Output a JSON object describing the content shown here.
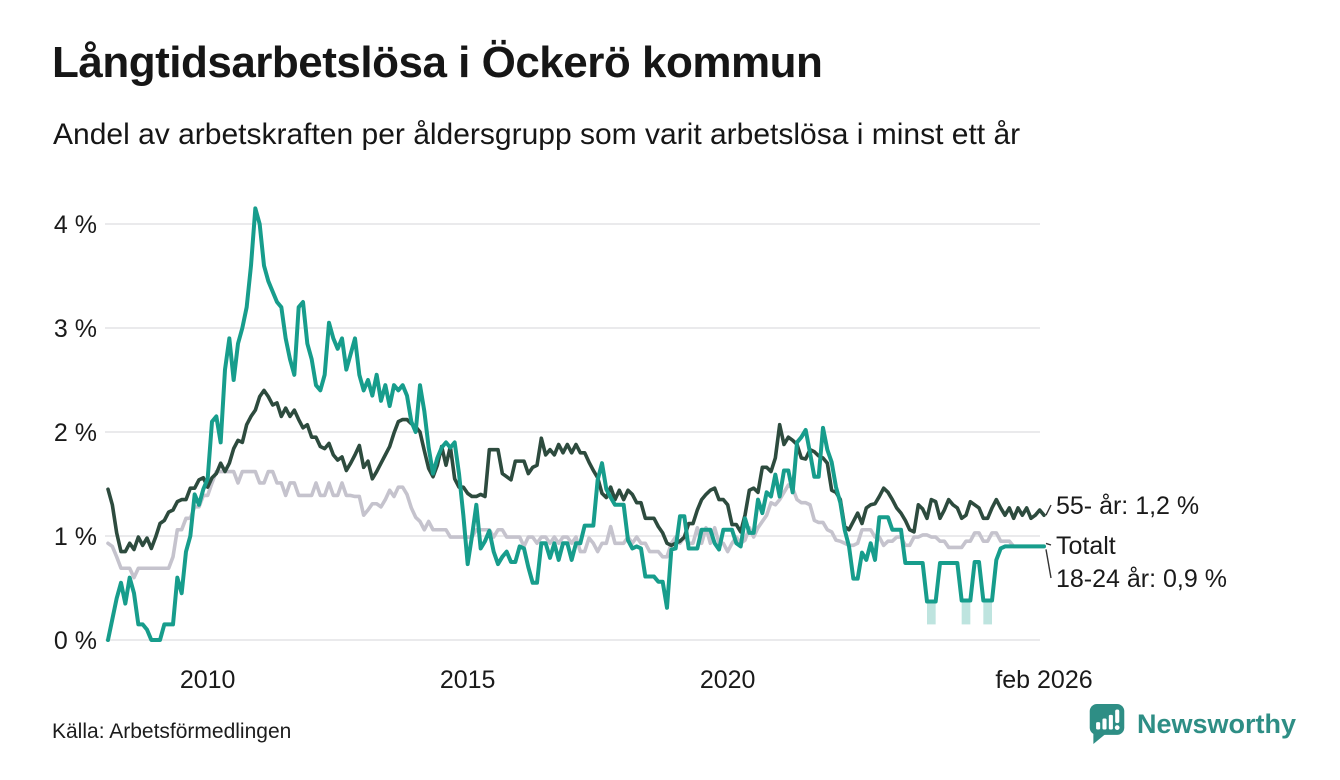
{
  "header": {
    "title": "Långtidsarbetslösa i Öckerö kommun",
    "subtitle": "Andel av arbetskraften per åldersgrupp som varit arbetslösa i minst ett år"
  },
  "footer": {
    "source": "Källa: Arbetsförmedlingen",
    "brand_name": "Newsworthy"
  },
  "colors": {
    "teal": "#179d8c",
    "dark_green": "#2d4b3e",
    "gray": "#c5c3cd",
    "band": "rgba(23,157,140,0.28)",
    "grid": "#e3e3e5",
    "brand_teal": "#2e8e85"
  },
  "chart_data": {
    "type": "line",
    "title": "Långtidsarbetslösa i Öckerö kommun",
    "subtitle": "Andel av arbetskraften per åldersgrupp som varit arbetslösa i minst ett år",
    "unit": "% av arbetskraften",
    "x_start": "2008-02",
    "x_end": "2026-02",
    "x_resolution": "monthly",
    "ylim": [
      0,
      4.3
    ],
    "grid": true,
    "y_ticks": [
      {
        "label": "0 %",
        "value": 0
      },
      {
        "label": "1 %",
        "value": 1
      },
      {
        "label": "2 %",
        "value": 2
      },
      {
        "label": "3 %",
        "value": 3
      },
      {
        "label": "4 %",
        "value": 4
      }
    ],
    "x_ticks": [
      {
        "label": "2010",
        "month_index": 23
      },
      {
        "label": "2015",
        "month_index": 83
      },
      {
        "label": "2020",
        "month_index": 143
      },
      {
        "label": "feb 2026",
        "month_index": 216
      }
    ],
    "series": [
      {
        "name": "Totalt",
        "end_label": "Totalt",
        "color_key": "gray",
        "last_value": 0.9,
        "values": [
          0.93,
          0.9,
          0.8,
          0.69,
          0.69,
          0.69,
          0.6,
          0.69,
          0.69,
          0.69,
          0.69,
          0.69,
          0.69,
          0.69,
          0.69,
          0.8,
          1.06,
          1.06,
          1.17,
          1.17,
          1.28,
          1.28,
          1.39,
          1.39,
          1.51,
          1.62,
          1.62,
          1.62,
          1.62,
          1.62,
          1.51,
          1.62,
          1.62,
          1.62,
          1.62,
          1.51,
          1.51,
          1.62,
          1.62,
          1.51,
          1.51,
          1.39,
          1.51,
          1.51,
          1.39,
          1.39,
          1.39,
          1.39,
          1.51,
          1.39,
          1.39,
          1.51,
          1.39,
          1.39,
          1.51,
          1.39,
          1.39,
          1.38,
          1.38,
          1.2,
          1.25,
          1.31,
          1.31,
          1.28,
          1.35,
          1.44,
          1.38,
          1.47,
          1.47,
          1.4,
          1.27,
          1.18,
          1.14,
          1.06,
          1.14,
          1.06,
          1.06,
          1.06,
          1.06,
          0.99,
          0.99,
          0.99,
          0.99,
          0.99,
          0.99,
          1.06,
          1.06,
          1.06,
          1.06,
          0.99,
          1.06,
          1.06,
          0.99,
          0.99,
          0.99,
          0.99,
          0.9,
          0.99,
          0.99,
          0.93,
          0.99,
          0.99,
          0.93,
          0.99,
          0.93,
          0.99,
          0.99,
          0.93,
          0.99,
          0.85,
          0.85,
          0.98,
          0.93,
          0.85,
          0.93,
          0.93,
          1.09,
          0.93,
          0.93,
          0.93,
          0.99,
          0.93,
          0.99,
          0.93,
          0.93,
          0.85,
          0.85,
          0.85,
          0.8,
          0.8,
          0.93,
          0.99,
          0.93,
          0.99,
          0.93,
          0.93,
          1.08,
          0.93,
          1.08,
          0.93,
          1.08,
          0.93,
          0.93,
          0.85,
          0.93,
          0.99,
          0.93,
          0.96,
          1.08,
          0.99,
          1.08,
          1.14,
          1.2,
          1.32,
          1.3,
          1.35,
          1.42,
          1.49,
          1.46,
          1.35,
          1.32,
          1.32,
          1.3,
          1.15,
          1.13,
          1.13,
          1.06,
          1.04,
          0.96,
          0.95,
          0.93,
          0.91,
          0.91,
          0.93,
          1.06,
          1.06,
          1.06,
          0.99,
          0.99,
          0.91,
          0.95,
          0.95,
          0.99,
          0.99,
          0.91,
          0.91,
          0.99,
          0.99,
          1.01,
          1.01,
          0.99,
          0.99,
          0.95,
          0.95,
          0.89,
          0.89,
          0.89,
          0.89,
          0.95,
          0.95,
          1.03,
          1.03,
          0.95,
          0.95,
          1.03,
          1.03,
          0.95,
          0.95,
          0.95,
          0.9,
          0.9,
          0.9,
          0.9,
          0.9,
          0.9,
          0.9,
          0.9
        ]
      },
      {
        "name": "55- år",
        "end_label": "55- år: 1,2 %",
        "color_key": "dark_green",
        "last_value": 1.2,
        "values": [
          1.45,
          1.3,
          1.03,
          0.85,
          0.85,
          0.93,
          0.87,
          0.99,
          0.91,
          0.98,
          0.88,
          0.99,
          1.12,
          1.15,
          1.23,
          1.25,
          1.33,
          1.35,
          1.35,
          1.46,
          1.46,
          1.54,
          1.56,
          1.47,
          1.56,
          1.6,
          1.7,
          1.62,
          1.7,
          1.84,
          1.92,
          1.9,
          2.07,
          2.15,
          2.21,
          2.34,
          2.4,
          2.34,
          2.26,
          2.28,
          2.15,
          2.23,
          2.15,
          2.21,
          2.12,
          2.04,
          2.07,
          1.95,
          1.95,
          1.86,
          1.84,
          1.89,
          1.78,
          1.73,
          1.76,
          1.63,
          1.7,
          1.78,
          1.87,
          1.66,
          1.72,
          1.55,
          1.62,
          1.7,
          1.78,
          1.86,
          1.99,
          2.1,
          2.12,
          2.12,
          2.08,
          2.05,
          2.0,
          1.82,
          1.65,
          1.57,
          1.68,
          1.86,
          1.68,
          1.86,
          1.55,
          1.47,
          1.47,
          1.41,
          1.38,
          1.38,
          1.4,
          1.38,
          1.83,
          1.83,
          1.83,
          1.6,
          1.57,
          1.54,
          1.72,
          1.72,
          1.72,
          1.6,
          1.66,
          1.68,
          1.94,
          1.78,
          1.83,
          1.78,
          1.88,
          1.8,
          1.88,
          1.8,
          1.88,
          1.8,
          1.8,
          1.71,
          1.63,
          1.56,
          1.41,
          1.37,
          1.47,
          1.35,
          1.44,
          1.35,
          1.44,
          1.4,
          1.32,
          1.32,
          1.17,
          1.17,
          1.17,
          1.09,
          1.03,
          0.93,
          0.91,
          0.93,
          0.95,
          0.99,
          1.12,
          1.12,
          1.25,
          1.35,
          1.4,
          1.44,
          1.46,
          1.35,
          1.35,
          1.3,
          1.11,
          1.11,
          1.04,
          1.2,
          1.44,
          1.46,
          1.42,
          1.66,
          1.66,
          1.62,
          1.75,
          2.07,
          1.88,
          1.95,
          1.92,
          1.88,
          1.75,
          1.74,
          1.83,
          1.81,
          1.77,
          1.75,
          1.7,
          1.44,
          1.42,
          1.35,
          1.09,
          1.06,
          1.14,
          1.22,
          1.12,
          1.27,
          1.3,
          1.31,
          1.38,
          1.46,
          1.42,
          1.35,
          1.27,
          1.22,
          1.15,
          1.06,
          1.04,
          1.3,
          1.26,
          1.17,
          1.35,
          1.33,
          1.17,
          1.25,
          1.35,
          1.3,
          1.27,
          1.17,
          1.2,
          1.33,
          1.3,
          1.27,
          1.17,
          1.17,
          1.27,
          1.35,
          1.27,
          1.2,
          1.27,
          1.17,
          1.27,
          1.2,
          1.27,
          1.17,
          1.2,
          1.25,
          1.2
        ]
      },
      {
        "name": "18-24 år",
        "end_label": "18-24 år: 0,9 %",
        "color_key": "teal",
        "last_value": 0.9,
        "values": [
          0.0,
          0.2,
          0.4,
          0.55,
          0.35,
          0.6,
          0.45,
          0.15,
          0.15,
          0.1,
          0.0,
          0.0,
          0.0,
          0.15,
          0.15,
          0.15,
          0.6,
          0.45,
          0.85,
          1.0,
          1.4,
          1.3,
          1.45,
          1.55,
          2.1,
          2.15,
          1.9,
          2.6,
          2.9,
          2.5,
          2.85,
          3.0,
          3.2,
          3.6,
          4.15,
          4.0,
          3.6,
          3.45,
          3.35,
          3.25,
          3.2,
          2.9,
          2.7,
          2.55,
          3.2,
          3.25,
          2.85,
          2.7,
          2.45,
          2.4,
          2.55,
          3.05,
          2.9,
          2.8,
          2.9,
          2.6,
          2.75,
          2.9,
          2.55,
          2.4,
          2.5,
          2.35,
          2.55,
          2.3,
          2.45,
          2.25,
          2.45,
          2.4,
          2.45,
          2.35,
          2.1,
          2.0,
          2.45,
          2.2,
          1.85,
          1.6,
          1.75,
          1.85,
          1.9,
          1.85,
          1.9,
          1.6,
          1.2,
          0.73,
          1.0,
          1.3,
          0.88,
          0.95,
          1.05,
          0.85,
          0.73,
          0.8,
          0.85,
          0.75,
          0.75,
          0.9,
          0.88,
          0.7,
          0.55,
          0.55,
          0.93,
          0.93,
          0.79,
          0.93,
          0.77,
          0.93,
          0.93,
          0.77,
          0.93,
          0.93,
          1.1,
          1.1,
          1.1,
          1.54,
          1.7,
          1.45,
          1.37,
          1.3,
          1.3,
          1.3,
          0.96,
          0.88,
          0.9,
          0.88,
          0.61,
          0.61,
          0.61,
          0.56,
          0.56,
          0.31,
          0.87,
          0.88,
          1.19,
          1.19,
          0.88,
          0.88,
          0.88,
          1.06,
          1.06,
          1.06,
          0.93,
          0.87,
          1.06,
          1.06,
          1.06,
          0.93,
          0.9,
          1.17,
          1.03,
          1.03,
          1.35,
          1.22,
          1.42,
          1.38,
          1.59,
          1.38,
          1.63,
          1.63,
          1.42,
          1.9,
          1.95,
          2.02,
          1.8,
          1.57,
          1.57,
          2.04,
          1.83,
          1.71,
          1.47,
          1.32,
          1.06,
          0.9,
          0.59,
          0.59,
          0.84,
          0.77,
          0.93,
          0.77,
          1.18,
          1.18,
          1.18,
          1.06,
          1.06,
          1.06,
          0.74,
          0.74,
          0.74,
          0.74,
          0.74,
          0.37,
          0.37,
          0.37,
          0.74,
          0.74,
          0.74,
          0.74,
          0.74,
          0.38,
          0.38,
          0.38,
          0.75,
          0.75,
          0.38,
          0.38,
          0.38,
          0.77,
          0.88,
          0.9,
          0.9,
          0.9,
          0.9,
          0.9,
          0.9,
          0.9,
          0.9,
          0.9,
          0.9
        ]
      }
    ],
    "uncertainty_bands": {
      "series": "18-24 år",
      "floor": 0.15,
      "month_ranges": [
        [
          189,
          191
        ],
        [
          197,
          199
        ],
        [
          202,
          204
        ]
      ]
    },
    "legend_position": "end-of-line-labels"
  }
}
